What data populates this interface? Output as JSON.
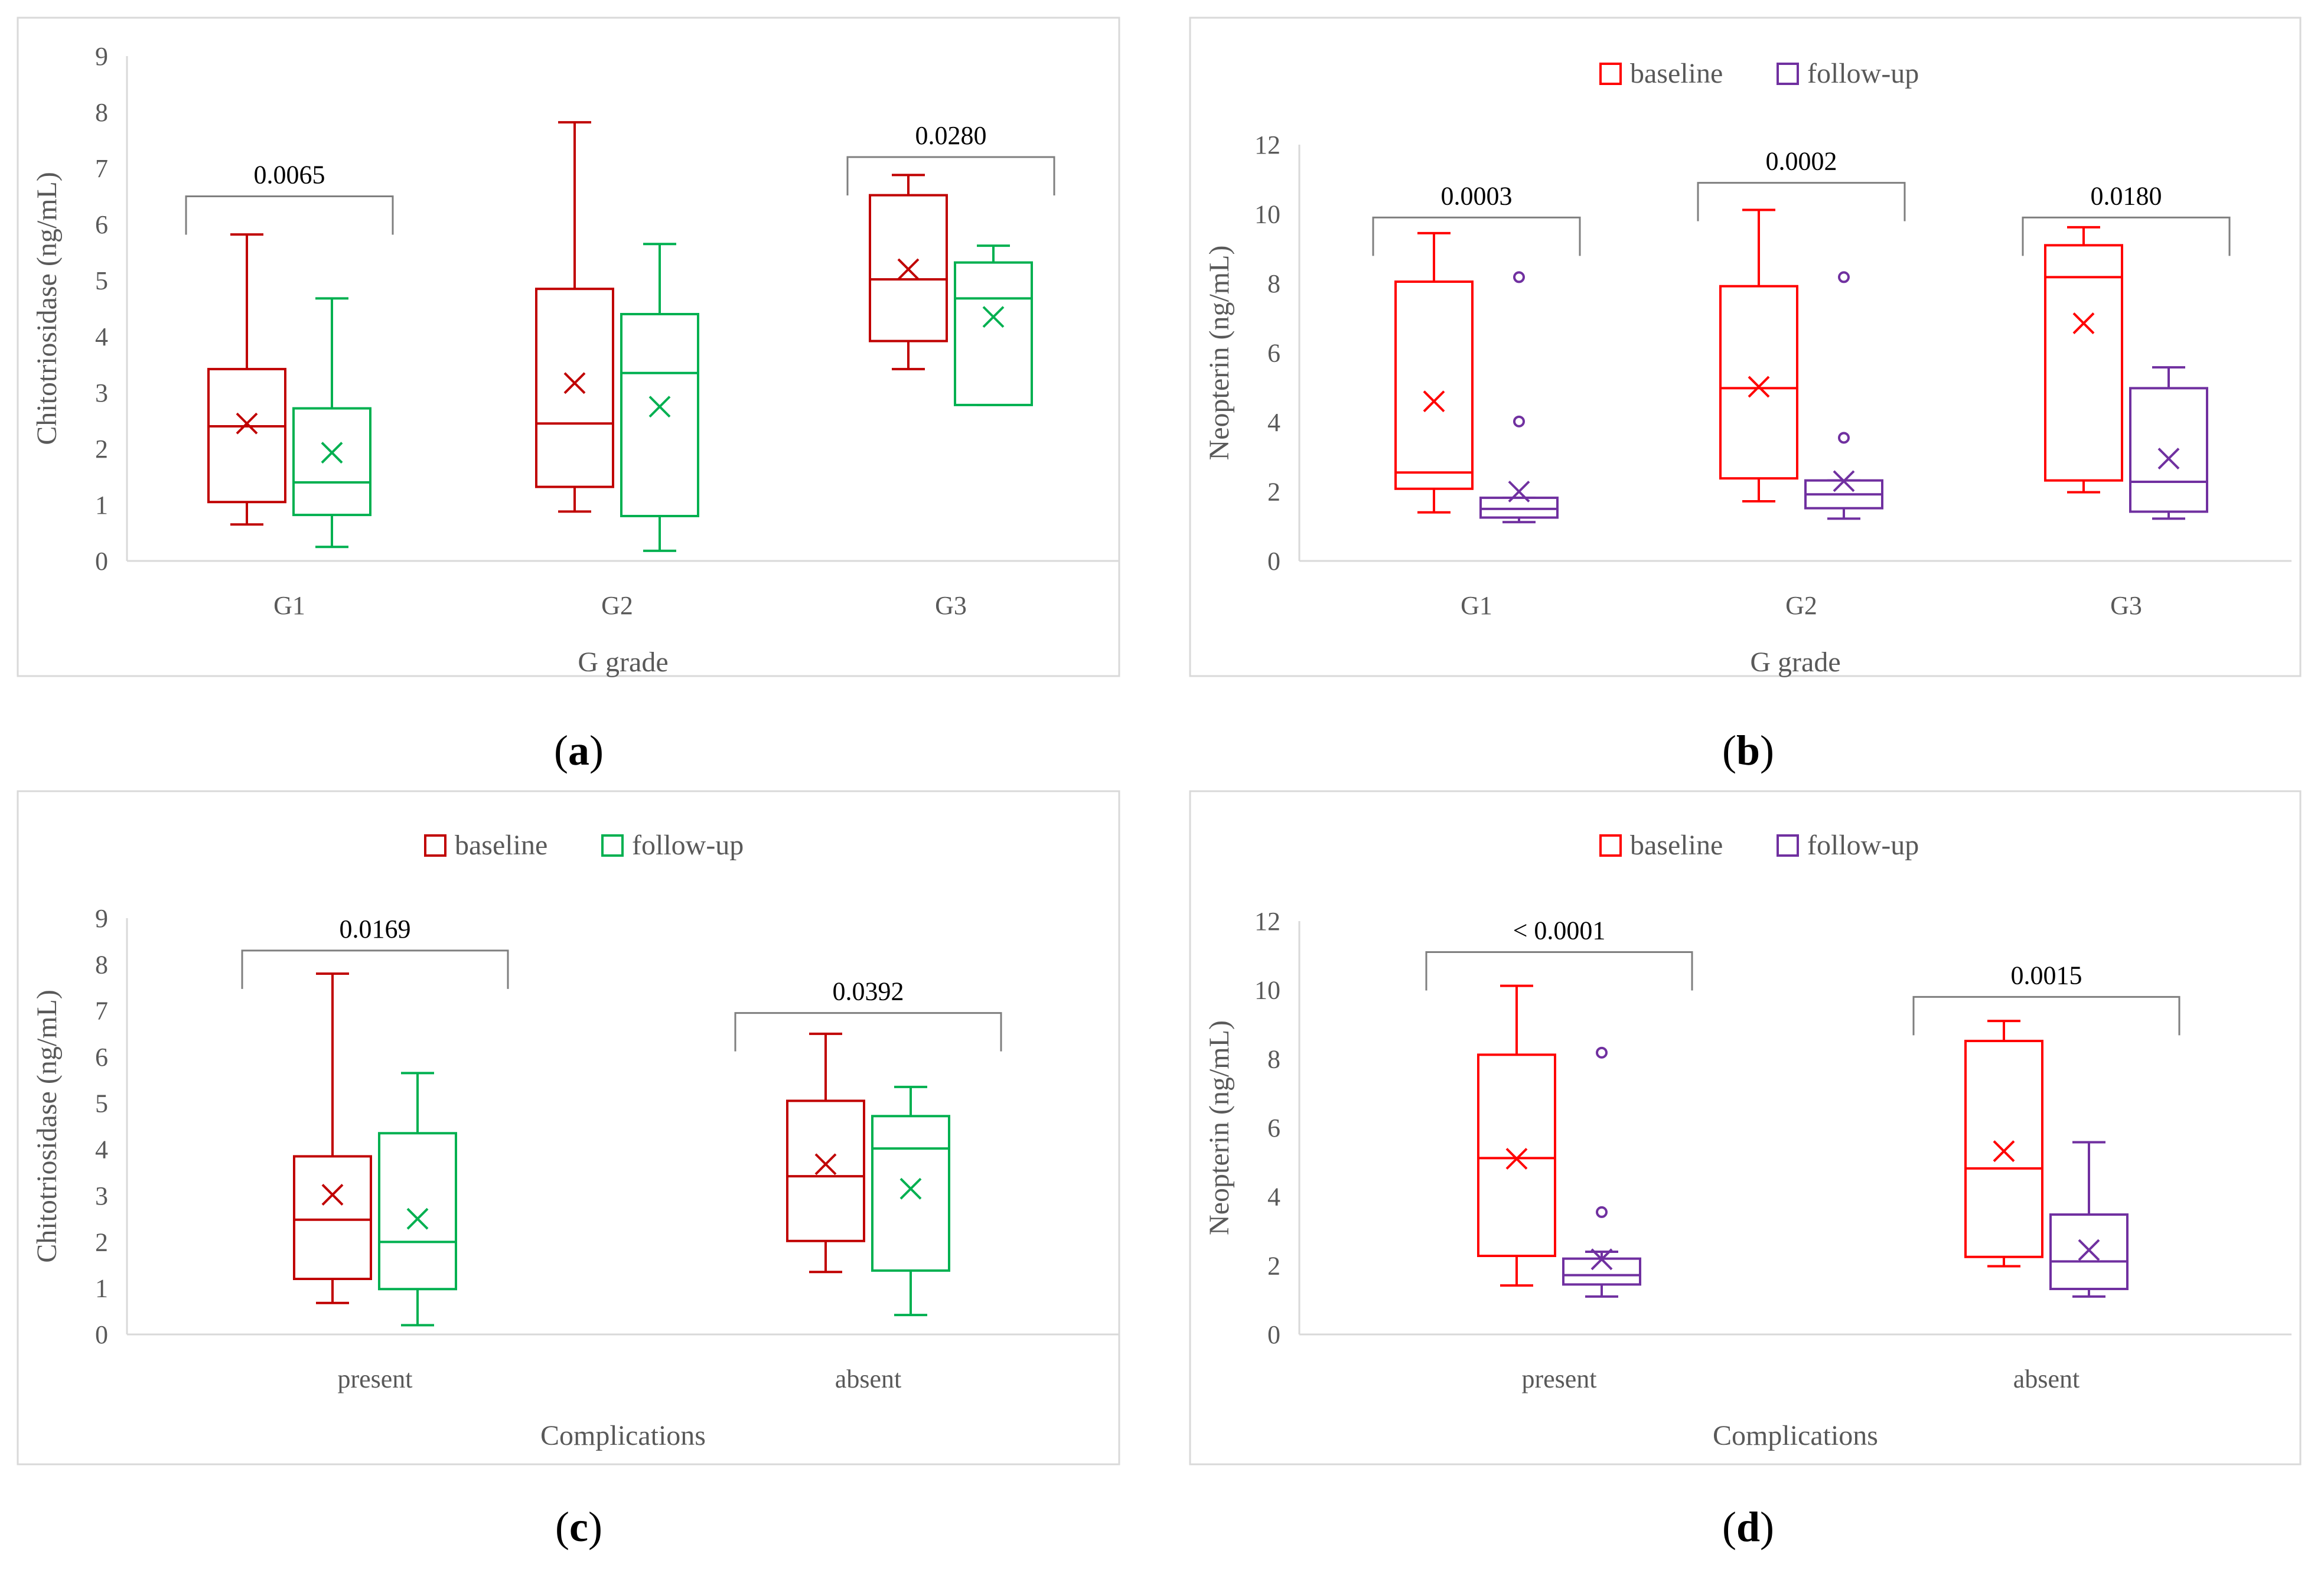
{
  "colors": {
    "baseline_dark": "#c00000",
    "baseline_red": "#ff0000",
    "followup_green": "#00b050",
    "followup_purple": "#7030a0"
  },
  "chart_data": [
    {
      "type": "box",
      "panel": "a",
      "caption_letter": "a",
      "title": "",
      "xlabel": "G grade",
      "ylabel": "Chitotriosidase (ng/mL)",
      "ylim": [
        0,
        9
      ],
      "yticks": [
        0,
        1,
        2,
        3,
        4,
        5,
        6,
        7,
        8,
        9
      ],
      "categories": [
        "G1",
        "G2",
        "G3"
      ],
      "legend": [],
      "series": [
        {
          "name": "baseline",
          "color": "#c00000",
          "boxes": [
            {
              "min": 0.65,
              "q1": 1.05,
              "median": 2.4,
              "q3": 3.42,
              "max": 5.82,
              "mean": 2.45,
              "outliers": []
            },
            {
              "min": 0.88,
              "q1": 1.32,
              "median": 2.45,
              "q3": 4.85,
              "max": 7.82,
              "mean": 3.17,
              "outliers": []
            },
            {
              "min": 3.42,
              "q1": 3.92,
              "median": 5.02,
              "q3": 6.52,
              "max": 6.88,
              "mean": 5.2,
              "outliers": []
            }
          ]
        },
        {
          "name": "follow-up",
          "color": "#00b050",
          "boxes": [
            {
              "min": 0.25,
              "q1": 0.82,
              "median": 1.4,
              "q3": 2.72,
              "max": 4.68,
              "mean": 1.93,
              "outliers": []
            },
            {
              "min": 0.18,
              "q1": 0.8,
              "median": 3.35,
              "q3": 4.4,
              "max": 5.65,
              "mean": 2.75,
              "outliers": []
            },
            {
              "min": 2.78,
              "q1": 2.78,
              "median": 4.68,
              "q3": 5.32,
              "max": 5.62,
              "mean": 4.35,
              "outliers": []
            }
          ]
        }
      ],
      "significance": [
        {
          "category": "G1",
          "label": "0.0065",
          "level": 6.5
        },
        {
          "category": "G3",
          "label": "0.0280",
          "level": 7.2
        }
      ]
    },
    {
      "type": "box",
      "panel": "b",
      "caption_letter": "b",
      "title": "",
      "xlabel": "G grade",
      "ylabel": "Neopterin (ng/mL)",
      "ylim": [
        0,
        12
      ],
      "yticks": [
        0,
        2,
        4,
        6,
        8,
        10,
        12
      ],
      "categories": [
        "G1",
        "G2",
        "G3"
      ],
      "legend": [
        "baseline",
        "follow-up"
      ],
      "series": [
        {
          "name": "baseline",
          "color": "#ff0000",
          "boxes": [
            {
              "min": 1.4,
              "q1": 2.08,
              "median": 2.55,
              "q3": 8.05,
              "max": 9.45,
              "mean": 4.6,
              "outliers": []
            },
            {
              "min": 1.72,
              "q1": 2.38,
              "median": 4.98,
              "q3": 7.92,
              "max": 10.12,
              "mean": 5.02,
              "outliers": []
            },
            {
              "min": 1.98,
              "q1": 2.32,
              "median": 8.18,
              "q3": 9.1,
              "max": 9.62,
              "mean": 6.85,
              "outliers": []
            }
          ]
        },
        {
          "name": "follow-up",
          "color": "#7030a0",
          "boxes": [
            {
              "min": 1.12,
              "q1": 1.25,
              "median": 1.5,
              "q3": 1.82,
              "max": 1.82,
              "mean": 2.0,
              "outliers": [
                4.02,
                8.18
              ]
            },
            {
              "min": 1.22,
              "q1": 1.52,
              "median": 1.92,
              "q3": 2.32,
              "max": 2.32,
              "mean": 2.3,
              "outliers": [
                3.55,
                8.18
              ]
            },
            {
              "min": 1.22,
              "q1": 1.42,
              "median": 2.28,
              "q3": 4.98,
              "max": 5.58,
              "mean": 2.95,
              "outliers": []
            }
          ]
        }
      ],
      "significance": [
        {
          "category": "G1",
          "label": "0.0003",
          "level": 9.9
        },
        {
          "category": "G2",
          "label": "0.0002",
          "level": 10.9
        },
        {
          "category": "G3",
          "label": "0.0180",
          "level": 9.9
        }
      ]
    },
    {
      "type": "box",
      "panel": "c",
      "caption_letter": "c",
      "title": "",
      "xlabel": "Complications",
      "ylabel": "Chitotriosidase (ng/mL)",
      "ylim": [
        0,
        9
      ],
      "yticks": [
        0,
        1,
        2,
        3,
        4,
        5,
        6,
        7,
        8,
        9
      ],
      "categories": [
        "present",
        "absent"
      ],
      "legend": [
        "baseline",
        "follow-up"
      ],
      "series": [
        {
          "name": "baseline",
          "color": "#c00000",
          "boxes": [
            {
              "min": 0.68,
              "q1": 1.2,
              "median": 2.48,
              "q3": 3.85,
              "max": 7.8,
              "mean": 3.02,
              "outliers": []
            },
            {
              "min": 1.35,
              "q1": 2.02,
              "median": 3.42,
              "q3": 5.05,
              "max": 6.5,
              "mean": 3.68,
              "outliers": []
            }
          ]
        },
        {
          "name": "follow-up",
          "color": "#00b050",
          "boxes": [
            {
              "min": 0.2,
              "q1": 0.98,
              "median": 2.0,
              "q3": 4.35,
              "max": 5.65,
              "mean": 2.5,
              "outliers": []
            },
            {
              "min": 0.42,
              "q1": 1.38,
              "median": 4.02,
              "q3": 4.72,
              "max": 5.35,
              "mean": 3.15,
              "outliers": []
            }
          ]
        }
      ],
      "significance": [
        {
          "category": "present",
          "label": "0.0169",
          "level": 8.3
        },
        {
          "category": "absent",
          "label": "0.0392",
          "level": 6.95
        }
      ]
    },
    {
      "type": "box",
      "panel": "d",
      "caption_letter": "d",
      "title": "",
      "xlabel": "Complications",
      "ylabel": "Neopterin (ng/mL)",
      "ylim": [
        0,
        12
      ],
      "yticks": [
        0,
        2,
        4,
        6,
        8,
        10,
        12
      ],
      "categories": [
        "present",
        "absent"
      ],
      "legend": [
        "baseline",
        "follow-up"
      ],
      "series": [
        {
          "name": "baseline",
          "color": "#ff0000",
          "boxes": [
            {
              "min": 1.42,
              "q1": 2.28,
              "median": 5.12,
              "q3": 8.12,
              "max": 10.12,
              "mean": 5.1,
              "outliers": []
            },
            {
              "min": 1.98,
              "q1": 2.25,
              "median": 4.82,
              "q3": 8.52,
              "max": 9.1,
              "mean": 5.32,
              "outliers": []
            }
          ]
        },
        {
          "name": "follow-up",
          "color": "#7030a0",
          "boxes": [
            {
              "min": 1.1,
              "q1": 1.45,
              "median": 1.72,
              "q3": 2.2,
              "max": 2.4,
              "mean": 2.18,
              "outliers": [
                3.55,
                8.18
              ]
            },
            {
              "min": 1.1,
              "q1": 1.32,
              "median": 2.12,
              "q3": 3.48,
              "max": 5.58,
              "mean": 2.45,
              "outliers": []
            }
          ]
        }
      ],
      "significance": [
        {
          "category": "present",
          "label": "< 0.0001",
          "level": 11.1
        },
        {
          "category": "absent",
          "label": "0.0015",
          "level": 9.8
        }
      ]
    }
  ]
}
